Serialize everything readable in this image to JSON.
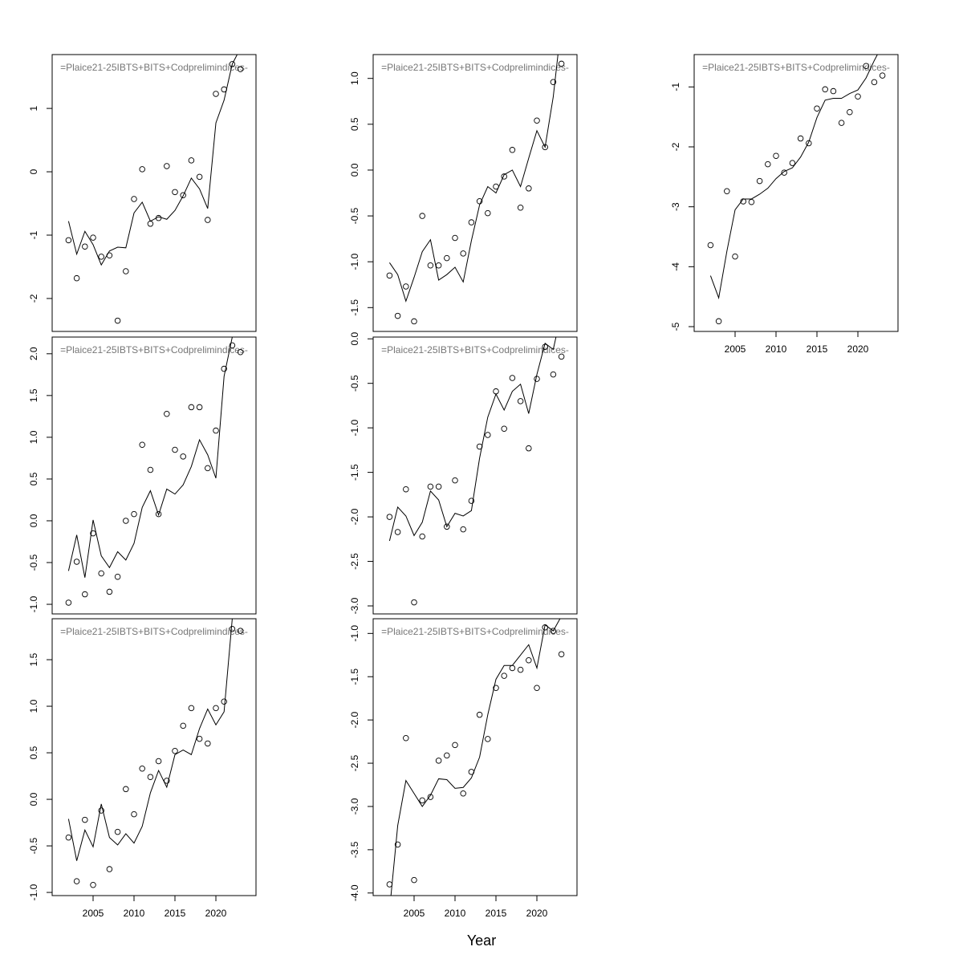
{
  "xlabel": "Year",
  "chart_data": [
    {
      "type": "scatter_line",
      "label": "=Plaice21-25IBTS+BITS+Codprelimindices-",
      "x": [
        2002,
        2003,
        2004,
        2005,
        2006,
        2007,
        2008,
        2009,
        2010,
        2011,
        2012,
        2013,
        2014,
        2015,
        2016,
        2017,
        2018,
        2019,
        2020,
        2021,
        2022,
        2023
      ],
      "points": [
        -1.08,
        -1.68,
        -1.18,
        -1.04,
        -1.34,
        -1.32,
        -2.35,
        -1.57,
        -0.43,
        0.04,
        -0.82,
        -0.73,
        0.09,
        -0.32,
        -0.37,
        0.18,
        -0.08,
        -0.76,
        1.23,
        1.3,
        1.7,
        1.62
      ],
      "line": [
        -0.78,
        -1.3,
        -0.94,
        -1.15,
        -1.47,
        -1.25,
        -1.19,
        -1.2,
        -0.65,
        -0.48,
        -0.78,
        -0.71,
        -0.75,
        -0.61,
        -0.38,
        -0.1,
        -0.27,
        -0.58,
        0.77,
        1.13,
        1.7,
        1.95
      ],
      "xlim": [
        2000,
        2024.9
      ],
      "ylim": [
        -2.52,
        1.85
      ],
      "yticks": [
        -2,
        -1,
        0,
        1
      ]
    },
    {
      "type": "scatter_line",
      "label": "=Plaice21-25IBTS+BITS+Codprelimindices-",
      "x": [
        2002,
        2003,
        2004,
        2005,
        2006,
        2007,
        2008,
        2009,
        2010,
        2011,
        2012,
        2013,
        2014,
        2015,
        2016,
        2017,
        2018,
        2019,
        2020,
        2021,
        2022,
        2023
      ],
      "points": [
        -0.98,
        -0.49,
        -0.88,
        -0.15,
        -0.63,
        -0.85,
        -0.67,
        0.0,
        0.08,
        0.91,
        0.61,
        0.08,
        1.28,
        0.85,
        0.77,
        1.36,
        1.36,
        0.63,
        1.08,
        1.82,
        2.1,
        2.02
      ],
      "line": [
        -0.6,
        -0.17,
        -0.68,
        0.01,
        -0.42,
        -0.56,
        -0.37,
        -0.47,
        -0.27,
        0.16,
        0.36,
        0.07,
        0.38,
        0.32,
        0.43,
        0.65,
        0.97,
        0.79,
        0.51,
        1.73,
        2.2,
        2.6
      ],
      "xlim": [
        2000,
        2024.9
      ],
      "ylim": [
        -1.115,
        2.2
      ],
      "yticks": [
        {
          "value": -1,
          "label": "-1.0"
        },
        -0.5,
        {
          "value": 0,
          "label": "0.0"
        },
        0.5,
        {
          "value": 1,
          "label": "1.0"
        },
        1.5,
        {
          "value": 2,
          "label": "2.0"
        }
      ]
    },
    {
      "type": "scatter_line",
      "label": "=Plaice21-25IBTS+BITS+Codprelimindices-",
      "x": [
        2002,
        2003,
        2004,
        2005,
        2006,
        2007,
        2008,
        2009,
        2010,
        2011,
        2012,
        2013,
        2014,
        2015,
        2016,
        2017,
        2018,
        2019,
        2020,
        2021,
        2022,
        2023
      ],
      "points": [
        -0.41,
        -0.88,
        -0.22,
        -0.92,
        -0.12,
        -0.75,
        -0.35,
        0.11,
        -0.16,
        0.33,
        0.24,
        0.41,
        0.2,
        0.52,
        0.79,
        0.98,
        0.65,
        0.6,
        0.98,
        1.05,
        1.83,
        1.81
      ],
      "line": [
        -0.21,
        -0.66,
        -0.33,
        -0.51,
        -0.05,
        -0.41,
        -0.49,
        -0.37,
        -0.47,
        -0.29,
        0.07,
        0.31,
        0.13,
        0.48,
        0.53,
        0.48,
        0.76,
        0.97,
        0.8,
        0.94,
        1.94,
        2.5
      ],
      "xlim": [
        2000,
        2024.9
      ],
      "ylim": [
        -1.034,
        1.94
      ],
      "yticks": [
        {
          "value": -1,
          "label": "-1.0"
        },
        -0.5,
        {
          "value": 0,
          "label": "0.0"
        },
        0.5,
        {
          "value": 1,
          "label": "1.0"
        },
        1.5
      ],
      "xticks": [
        2005,
        2010,
        2015,
        2020
      ]
    },
    {
      "type": "scatter_line",
      "label": "=Plaice21-25IBTS+BITS+Codprelimindices-",
      "x": [
        2002,
        2003,
        2004,
        2005,
        2006,
        2007,
        2008,
        2009,
        2010,
        2011,
        2012,
        2013,
        2014,
        2015,
        2016,
        2017,
        2018,
        2019,
        2020,
        2021,
        2022,
        2023
      ],
      "points": [
        -1.15,
        -1.59,
        -1.27,
        -1.65,
        -0.5,
        -1.04,
        -1.04,
        -0.96,
        -0.74,
        -0.91,
        -0.57,
        -0.34,
        -0.47,
        -0.18,
        -0.07,
        0.22,
        -0.41,
        -0.2,
        0.54,
        0.25,
        0.96,
        1.16
      ],
      "line": [
        -1.01,
        -1.14,
        -1.43,
        -1.17,
        -0.89,
        -0.76,
        -1.2,
        -1.14,
        -1.06,
        -1.22,
        -0.77,
        -0.38,
        -0.18,
        -0.25,
        -0.05,
        0.0,
        -0.18,
        0.13,
        0.43,
        0.25,
        0.8,
        1.6
      ],
      "xlim": [
        2000,
        2024.9
      ],
      "ylim": [
        -1.76,
        1.26
      ],
      "yticks": [
        -1.5,
        {
          "value": -1,
          "label": "-1.0"
        },
        -0.5,
        {
          "value": 0,
          "label": "0.0"
        },
        0.5,
        {
          "value": 1,
          "label": "1.0"
        }
      ]
    },
    {
      "type": "scatter_line",
      "label": "=Plaice21-25IBTS+BITS+Codprelimindices-",
      "x": [
        2002,
        2003,
        2004,
        2005,
        2006,
        2007,
        2008,
        2009,
        2010,
        2011,
        2012,
        2013,
        2014,
        2015,
        2016,
        2017,
        2018,
        2019,
        2020,
        2021,
        2022,
        2023
      ],
      "points": [
        -2.0,
        -2.17,
        -1.69,
        -2.96,
        -2.22,
        -1.66,
        -1.66,
        -2.11,
        -1.59,
        -2.14,
        -1.82,
        -1.21,
        -1.08,
        -0.59,
        -1.01,
        -0.44,
        -0.7,
        -1.23,
        -0.45,
        -0.09,
        -0.4,
        -0.2
      ],
      "line": [
        -2.27,
        -1.89,
        -1.99,
        -2.21,
        -2.06,
        -1.71,
        -1.81,
        -2.11,
        -1.96,
        -1.99,
        -1.93,
        -1.34,
        -0.88,
        -0.62,
        -0.8,
        -0.59,
        -0.51,
        -0.84,
        -0.4,
        -0.05,
        -0.12,
        0.3
      ],
      "xlim": [
        2000,
        2024.9
      ],
      "ylim": [
        -3.09,
        0.02
      ],
      "yticks": [
        {
          "value": -3,
          "label": "-3.0"
        },
        -2.5,
        {
          "value": -2,
          "label": "-2.0"
        },
        -1.5,
        {
          "value": -1,
          "label": "-1.0"
        },
        -0.5,
        {
          "value": 0,
          "label": "0.0"
        }
      ]
    },
    {
      "type": "scatter_line",
      "label": "=Plaice21-25IBTS+BITS+Codprelimindices-",
      "x": [
        2002,
        2003,
        2004,
        2005,
        2006,
        2007,
        2008,
        2009,
        2010,
        2011,
        2012,
        2013,
        2014,
        2015,
        2016,
        2017,
        2018,
        2019,
        2020,
        2021,
        2022,
        2023
      ],
      "points": [
        -3.9,
        -3.44,
        -2.21,
        -3.85,
        -2.93,
        -2.89,
        -2.47,
        -2.41,
        -2.29,
        -2.85,
        -2.6,
        -1.94,
        -2.22,
        -1.63,
        -1.49,
        -1.4,
        -1.42,
        -1.31,
        -1.63,
        -0.93,
        -0.97,
        -1.24
      ],
      "line": [
        -4.2,
        -3.22,
        -2.7,
        -2.85,
        -3.0,
        -2.87,
        -2.68,
        -2.69,
        -2.79,
        -2.78,
        -2.67,
        -2.43,
        -1.94,
        -1.53,
        -1.37,
        -1.37,
        -1.25,
        -1.13,
        -1.4,
        -0.9,
        -0.97,
        -0.8
      ],
      "xlim": [
        2000,
        2024.9
      ],
      "ylim": [
        -4.03,
        -0.83
      ],
      "yticks": [
        {
          "value": -4,
          "label": "-4.0"
        },
        -3.5,
        {
          "value": -3,
          "label": "-3.0"
        },
        -2.5,
        {
          "value": -2,
          "label": "-2.0"
        },
        -1.5,
        {
          "value": -1,
          "label": "-1.0"
        }
      ],
      "xticks": [
        2005,
        2010,
        2015,
        2020
      ]
    },
    {
      "type": "scatter_line",
      "label": "=Plaice21-25IBTS+BITS+Codprelimindices-",
      "x": [
        2002,
        2003,
        2004,
        2005,
        2006,
        2007,
        2008,
        2009,
        2010,
        2011,
        2012,
        2013,
        2014,
        2015,
        2016,
        2017,
        2018,
        2019,
        2020,
        2021,
        2022,
        2023
      ],
      "points": [
        -3.64,
        -4.91,
        -2.74,
        -3.83,
        -2.91,
        -2.92,
        -2.57,
        -2.29,
        -2.15,
        -2.43,
        -2.27,
        -1.86,
        -1.94,
        -1.36,
        -1.04,
        -1.07,
        -1.6,
        -1.42,
        -1.16,
        -0.65,
        -0.92,
        -0.81
      ],
      "line": [
        -4.15,
        -4.52,
        -3.74,
        -3.05,
        -2.87,
        -2.87,
        -2.79,
        -2.69,
        -2.53,
        -2.41,
        -2.35,
        -2.17,
        -1.92,
        -1.51,
        -1.22,
        -1.19,
        -1.19,
        -1.11,
        -1.05,
        -0.85,
        -0.56,
        -0.3
      ],
      "xlim": [
        2000,
        2024.9
      ],
      "ylim": [
        -5.08,
        -0.46
      ],
      "yticks": [
        -5,
        -4,
        -3,
        -2,
        -1
      ],
      "xticks": [
        2005,
        2010,
        2015,
        2020
      ]
    }
  ]
}
